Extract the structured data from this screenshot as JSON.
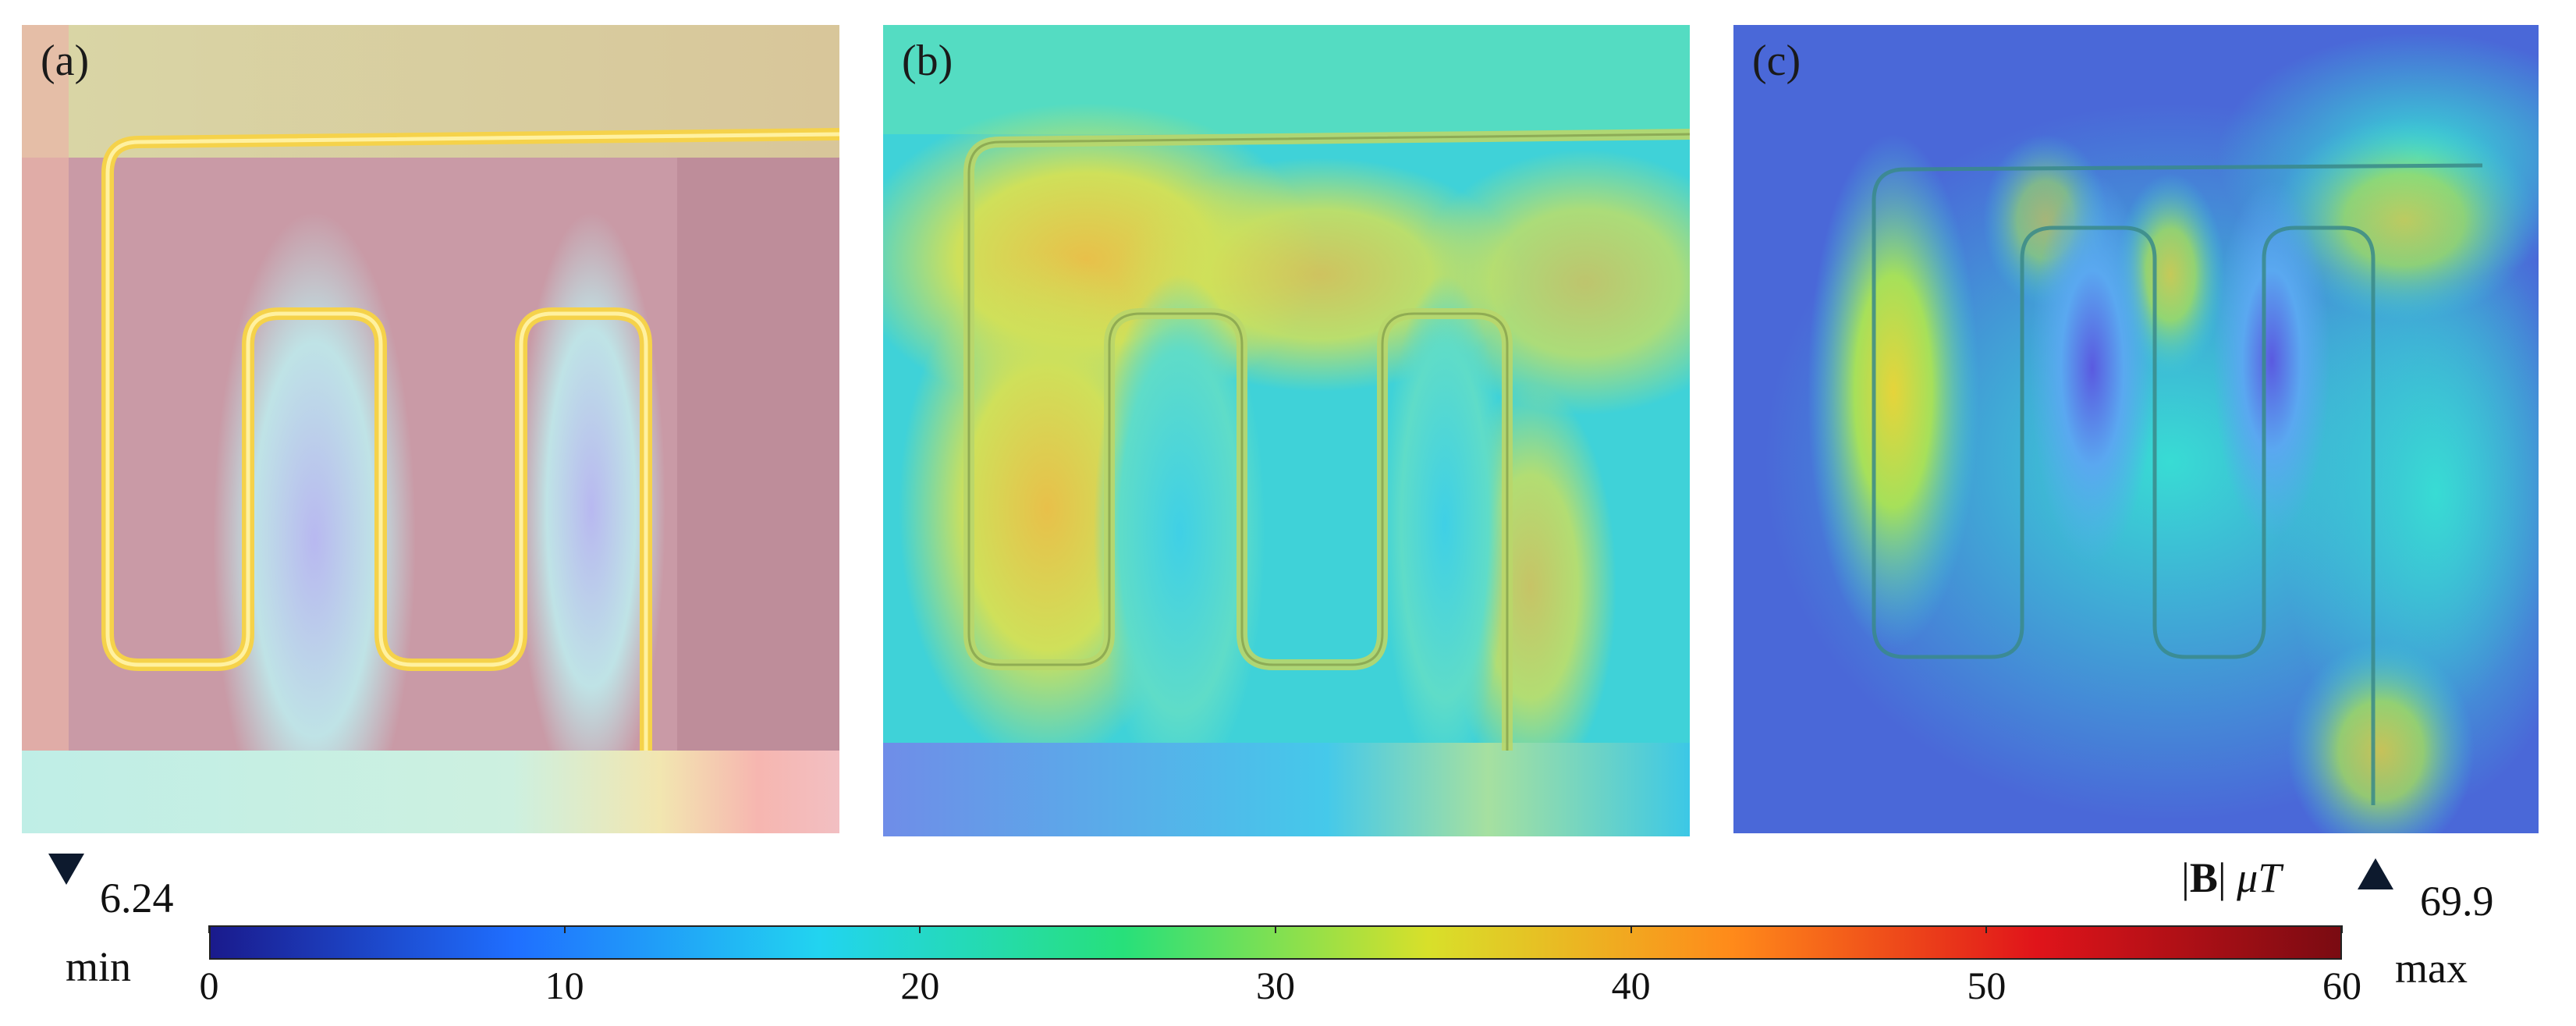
{
  "panels": [
    {
      "label": "(a)"
    },
    {
      "label": "(b)"
    },
    {
      "label": "(c)"
    }
  ],
  "colorbar": {
    "title_bold": "B",
    "title_unit": "μT",
    "min_label": "min",
    "max_label": "max",
    "min_value": "6.24",
    "max_value": "69.9",
    "ticks": [
      "0",
      "10",
      "20",
      "30",
      "40",
      "50",
      "60"
    ],
    "colormap": [
      "#1a1a8c",
      "#1f6fff",
      "#22d4f0",
      "#27e07a",
      "#d8e02a",
      "#ff8a1a",
      "#e0141a",
      "#7a0b12"
    ]
  }
}
